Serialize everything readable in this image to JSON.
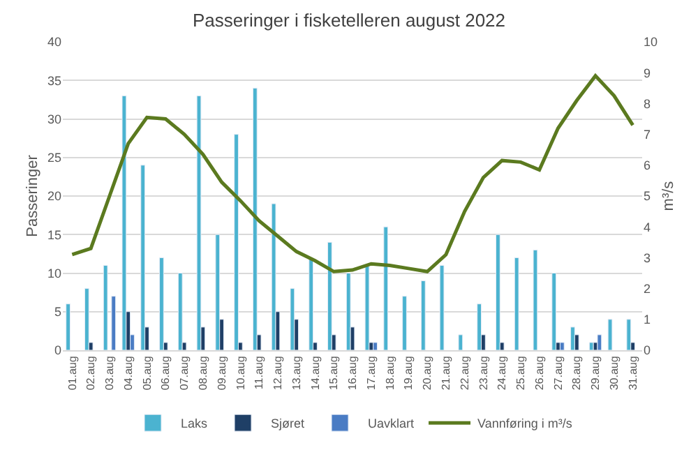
{
  "chart_data": {
    "type": "bar",
    "title": "Passeringer i fisketelleren august 2022",
    "ylabel": "Passeringer",
    "y2label": "m³/s",
    "categories": [
      "01.aug",
      "02.aug",
      "03.aug",
      "04.aug",
      "05.aug",
      "06.aug",
      "07.aug",
      "08.aug",
      "09.aug",
      "10.aug",
      "11.aug",
      "12.aug",
      "13.aug",
      "14.aug",
      "15.aug",
      "16.aug",
      "17.aug",
      "18.aug",
      "19.aug",
      "20.aug",
      "21.aug",
      "22.aug",
      "23.aug",
      "24.aug",
      "25.aug",
      "26.aug",
      "27.aug",
      "28.aug",
      "29.aug",
      "30.aug",
      "31.aug"
    ],
    "series": [
      {
        "name": "Laks",
        "color": "#4bb3d0",
        "values": [
          6,
          8,
          11,
          33,
          24,
          12,
          10,
          33,
          15,
          28,
          34,
          19,
          8,
          12,
          14,
          10,
          11,
          16,
          7,
          9,
          11,
          2,
          6,
          15,
          12,
          13,
          10,
          3,
          1,
          4,
          4
        ]
      },
      {
        "name": "Sjøret",
        "color": "#1f3f66",
        "values": [
          null,
          1,
          null,
          5,
          3,
          1,
          1,
          3,
          4,
          1,
          2,
          5,
          4,
          1,
          2,
          3,
          1,
          null,
          null,
          null,
          null,
          null,
          2,
          1,
          null,
          null,
          1,
          2,
          1,
          null,
          1
        ]
      },
      {
        "name": "Uavklart",
        "color": "#4a7cc4",
        "values": [
          null,
          null,
          7,
          2,
          null,
          null,
          null,
          null,
          null,
          null,
          null,
          null,
          null,
          null,
          null,
          null,
          1,
          null,
          null,
          null,
          null,
          null,
          null,
          null,
          null,
          null,
          1,
          null,
          2,
          null,
          null
        ]
      },
      {
        "name": "Vannføring i m³/s",
        "type": "line",
        "axis": "y2",
        "color": "#5b7a1f",
        "values": [
          3.1,
          3.3,
          5.0,
          6.7,
          7.55,
          7.5,
          7.0,
          6.35,
          5.45,
          4.85,
          4.2,
          3.7,
          3.2,
          2.9,
          2.55,
          2.6,
          2.8,
          2.75,
          2.65,
          2.55,
          3.1,
          4.5,
          5.6,
          6.15,
          6.1,
          5.85,
          7.2,
          8.1,
          8.9,
          8.25,
          7.3
        ]
      }
    ],
    "ylim": [
      0,
      40
    ],
    "yticks": [
      0,
      5,
      10,
      15,
      20,
      25,
      30,
      35,
      40
    ],
    "y2lim": [
      0,
      10
    ],
    "y2ticks": [
      0,
      1,
      2,
      3,
      4,
      5,
      6,
      7,
      8,
      9,
      10
    ],
    "grid": "y",
    "legend": "bottom",
    "marker": "none",
    "line_style": "solid"
  }
}
